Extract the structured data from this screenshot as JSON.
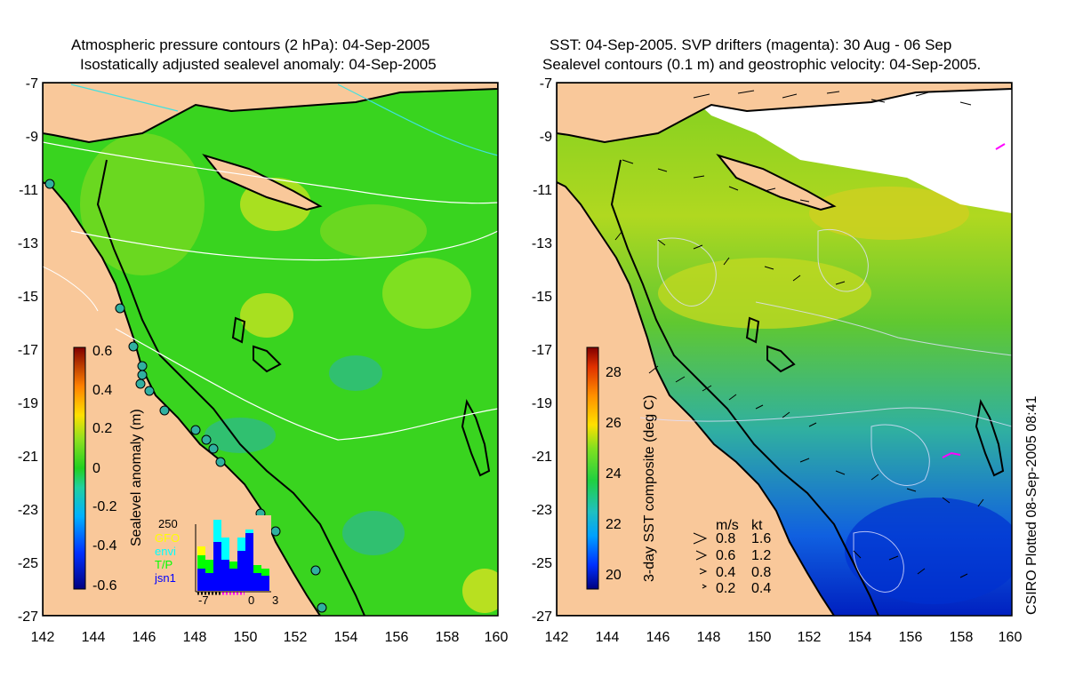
{
  "left_panel": {
    "title_line1": "Atmospheric pressure contours (2 hPa): 04-Sep-2005",
    "title_line2": "Isostatically adjusted sealevel anomaly: 04-Sep-2005",
    "colorbar_label": "Sealevel anomaly (m)",
    "colorbar_ticks": [
      "0.6",
      "0.4",
      "0.2",
      "0",
      "-0.2",
      "-0.4",
      "-0.6"
    ],
    "colors": {
      "ocean": "#39d41f",
      "ocean_light": "#7fe020",
      "land": "#f9c89a",
      "contour": "#ffffff"
    },
    "inset": {
      "scale_label": "250",
      "legend": [
        {
          "label": "GFO",
          "color": "#ffff00"
        },
        {
          "label": "envi",
          "color": "#00ffff"
        },
        {
          "label": "T/P",
          "color": "#00ff00"
        },
        {
          "label": "jsn1",
          "color": "#0000ff"
        }
      ],
      "x_ticks": [
        "-7",
        "0",
        "3"
      ]
    }
  },
  "right_panel": {
    "title_line1": "SST: 04-Sep-2005. SVP drifters (magenta): 30 Aug - 06 Sep",
    "title_line2": "Sealevel contours (0.1 m) and geostrophic velocity: 04-Sep-2005.",
    "colorbar_label": "3-day SST composite (deg C)",
    "colorbar_ticks": [
      "28",
      "26",
      "24",
      "22",
      "20"
    ],
    "velocity_legend": {
      "header_ms": "m/s",
      "header_kt": "kt",
      "rows": [
        {
          "ms": "0.8",
          "kt": "1.6"
        },
        {
          "ms": "0.6",
          "kt": "1.2"
        },
        {
          "ms": "0.4",
          "kt": "0.8"
        },
        {
          "ms": "0.2",
          "kt": "0.4"
        }
      ]
    }
  },
  "axes": {
    "lat_ticks": [
      "-7",
      "-9",
      "-11",
      "-13",
      "-15",
      "-17",
      "-19",
      "-21",
      "-23",
      "-25",
      "-27"
    ],
    "lon_ticks": [
      "142",
      "144",
      "146",
      "148",
      "150",
      "152",
      "154",
      "156",
      "158",
      "160"
    ]
  },
  "credit": "CSIRO Plotted 08-Sep-2005 08:41"
}
